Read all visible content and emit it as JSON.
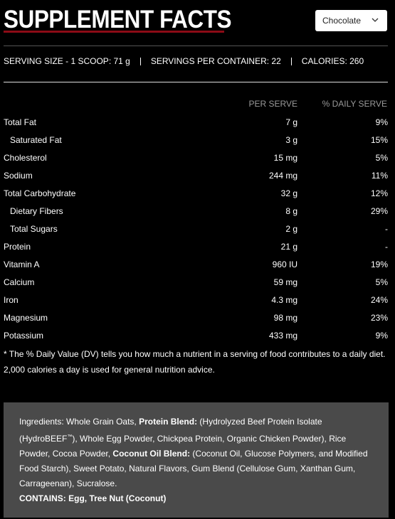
{
  "header": {
    "title": "SUPPLEMENT FACTS",
    "flavor": "Chocolate"
  },
  "serving": [
    "SERVING SIZE - 1 SCOOP: 71 g",
    "SERVINGS PER CONTAINER: 22",
    "CALORIES: 260"
  ],
  "table": {
    "columns": [
      "PER SERVE",
      "% DAILY SERVE"
    ],
    "rows": [
      {
        "name": "Total Fat",
        "amount": "7 g",
        "dv": "9%",
        "indent": false
      },
      {
        "name": "Saturated Fat",
        "amount": "3 g",
        "dv": "15%",
        "indent": true
      },
      {
        "name": "Cholesterol",
        "amount": "15 mg",
        "dv": "5%",
        "indent": false
      },
      {
        "name": "Sodium",
        "amount": "244 mg",
        "dv": "11%",
        "indent": false
      },
      {
        "name": "Total Carbohydrate",
        "amount": "32 g",
        "dv": "12%",
        "indent": false
      },
      {
        "name": "Dietary Fibers",
        "amount": "8 g",
        "dv": "29%",
        "indent": true
      },
      {
        "name": "Total Sugars",
        "amount": "2 g",
        "dv": "-",
        "indent": true
      },
      {
        "name": "Protein",
        "amount": "21 g",
        "dv": "-",
        "indent": false
      },
      {
        "name": "Vitamin A",
        "amount": "960 IU",
        "dv": "19%",
        "indent": false
      },
      {
        "name": "Calcium",
        "amount": "59 mg",
        "dv": "5%",
        "indent": false
      },
      {
        "name": "Iron",
        "amount": "4.3 mg",
        "dv": "24%",
        "indent": false
      },
      {
        "name": "Magnesium",
        "amount": "98 mg",
        "dv": "23%",
        "indent": false
      },
      {
        "name": "Potassium",
        "amount": "433 mg",
        "dv": "9%",
        "indent": false
      }
    ]
  },
  "footnote": "* The % Daily Value (DV) tells you how much a nutrient in a serving of food contributes to a daily diet. 2,000 calories a day is used for general nutrition advice.",
  "ingredients": [
    {
      "text": "Ingredients: Whole Grain Oats, ",
      "style": "normal"
    },
    {
      "text": "Protein Blend:",
      "style": "bold"
    },
    {
      "text": " (Hydrolyzed Beef Protein Isolate (HydroBEEF",
      "style": "normal"
    },
    {
      "text": "™",
      "style": "sup"
    },
    {
      "text": "), Whole Egg Powder, Chickpea Protein, Organic Chicken Powder), Rice Powder, Cocoa Powder, ",
      "style": "normal"
    },
    {
      "text": "Coconut Oil Blend:",
      "style": "bold"
    },
    {
      "text": " (Coconut Oil, Glucose Polymers, and Modified Food Starch), Sweet Potato, Natural Flavors, Gum Blend (Cellulose Gum, Xanthan Gum, Carrageenan), Sucralose.",
      "style": "normal"
    }
  ],
  "contains": "CONTAINS: Egg, Tree Nut (Coconut)"
}
